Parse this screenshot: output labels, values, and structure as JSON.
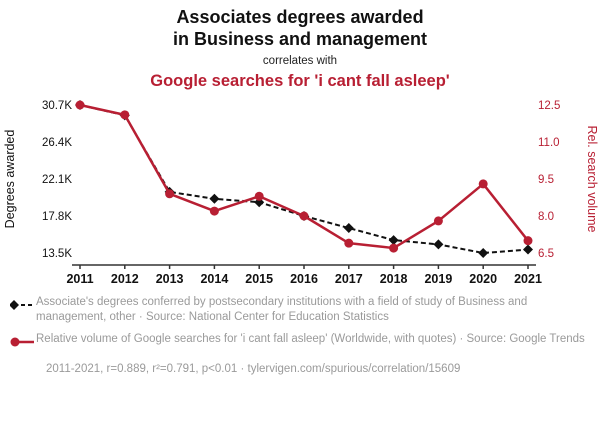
{
  "header": {
    "title_line1": "Associates degrees awarded",
    "title_line2": "in Business and management",
    "connector": "correlates with",
    "subtitle": "Google searches for 'i cant fall asleep'"
  },
  "colors": {
    "black_series": "#111111",
    "red_series": "#b81f33",
    "axis_line": "#333333",
    "legend_gray": "#9a9a9a"
  },
  "chart_data": {
    "type": "line",
    "x": [
      2011,
      2012,
      2013,
      2014,
      2015,
      2016,
      2017,
      2018,
      2019,
      2020,
      2021
    ],
    "left_axis": {
      "label": "Degrees awarded",
      "ticks": [
        "13.5K",
        "17.8K",
        "22.1K",
        "26.4K",
        "30.7K"
      ],
      "tick_values": [
        13500,
        17800,
        22100,
        26400,
        30700
      ],
      "min": 13500,
      "max": 30700
    },
    "right_axis": {
      "label": "Rel. search volume",
      "ticks": [
        "6.5",
        "8.0",
        "9.5",
        "11.0",
        "12.5"
      ],
      "tick_values": [
        6.5,
        8.0,
        9.5,
        11.0,
        12.5
      ],
      "min": 6.5,
      "max": 12.5
    },
    "series": [
      {
        "name": "Associates degrees awarded in Business and management",
        "axis": "left_axis",
        "color": "#111111",
        "style": "dashed",
        "marker": "diamond",
        "values": [
          30700,
          29500,
          20600,
          19800,
          19400,
          17800,
          16400,
          15000,
          14500,
          13500,
          13900
        ]
      },
      {
        "name": "Google searches for 'i cant fall asleep'",
        "axis": "right_axis",
        "color": "#b81f33",
        "style": "solid",
        "marker": "circle",
        "values": [
          12.5,
          12.1,
          8.9,
          8.2,
          8.8,
          8.0,
          6.9,
          6.7,
          7.8,
          9.3,
          7.0
        ]
      }
    ]
  },
  "legend": [
    {
      "series": "degrees",
      "text": "Associate's degrees conferred by postsecondary institutions with a field of study of Business and management, other · Source: National Center for Education Statistics"
    },
    {
      "series": "searches",
      "text": "Relative volume of Google searches for 'i cant fall asleep' (Worldwide, with quotes) · Source: Google Trends"
    }
  ],
  "footer": "2011-2021, r=0.889, r²=0.791, p<0.01 · tylervigen.com/spurious/correlation/15609"
}
